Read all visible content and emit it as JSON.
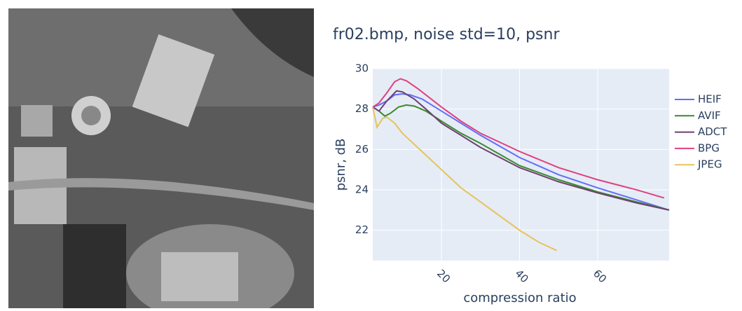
{
  "chart_data": {
    "type": "line",
    "title": "fr02.bmp, noise std=10, psnr",
    "x_label": "compression ratio",
    "y_label": "psnr, dB",
    "xlim": [
      2.4,
      78.3
    ],
    "xticks": [
      20,
      40,
      60
    ],
    "ylim": [
      20.5,
      30
    ],
    "yticks": [
      22,
      24,
      26,
      28,
      30
    ],
    "grid": true,
    "legend": "right",
    "series": [
      {
        "name": "HEIF",
        "color": "#636efa",
        "x": [
          2.4,
          4,
          6,
          8,
          10,
          12,
          15,
          20,
          25,
          30,
          40,
          50,
          60,
          70,
          78.3
        ],
        "values": [
          28.1,
          28.2,
          28.4,
          28.7,
          28.75,
          28.7,
          28.5,
          27.9,
          27.3,
          26.7,
          25.6,
          24.75,
          24.1,
          23.5,
          23.0
        ]
      },
      {
        "name": "AVIF",
        "color": "#3a8a2e",
        "x": [
          2.4,
          4,
          5.5,
          7,
          9,
          11,
          13,
          16,
          20,
          25,
          30,
          40,
          50,
          60,
          70,
          78.3
        ],
        "values": [
          28.1,
          27.9,
          27.65,
          27.8,
          28.1,
          28.2,
          28.15,
          27.9,
          27.4,
          26.8,
          26.3,
          25.2,
          24.5,
          23.9,
          23.4,
          23.0
        ]
      },
      {
        "name": "ADCT",
        "color": "#6f3f6f",
        "x": [
          2.4,
          4,
          6,
          8.5,
          10,
          13,
          16,
          20,
          25,
          30,
          40,
          50,
          60,
          70,
          78.3
        ],
        "values": [
          28.1,
          27.9,
          28.4,
          28.9,
          28.85,
          28.5,
          28.0,
          27.3,
          26.7,
          26.1,
          25.1,
          24.4,
          23.85,
          23.35,
          23.0
        ]
      },
      {
        "name": "BPG",
        "color": "#e0407f",
        "x": [
          2.4,
          4,
          6,
          8,
          9.5,
          11,
          14,
          20,
          25,
          30,
          40,
          50,
          60,
          70,
          77
        ],
        "values": [
          28.1,
          28.3,
          28.8,
          29.35,
          29.5,
          29.4,
          29.0,
          28.1,
          27.4,
          26.8,
          25.9,
          25.1,
          24.5,
          24.0,
          23.6
        ]
      },
      {
        "name": "JPEG",
        "color": "#e6c35c",
        "x": [
          2.4,
          3.5,
          5,
          6,
          8,
          10,
          15,
          20,
          25,
          30,
          40,
          45,
          49.5
        ],
        "values": [
          28.1,
          27.1,
          27.55,
          27.6,
          27.3,
          26.8,
          25.9,
          25.0,
          24.1,
          23.4,
          22.0,
          21.4,
          21.0
        ]
      }
    ]
  }
}
